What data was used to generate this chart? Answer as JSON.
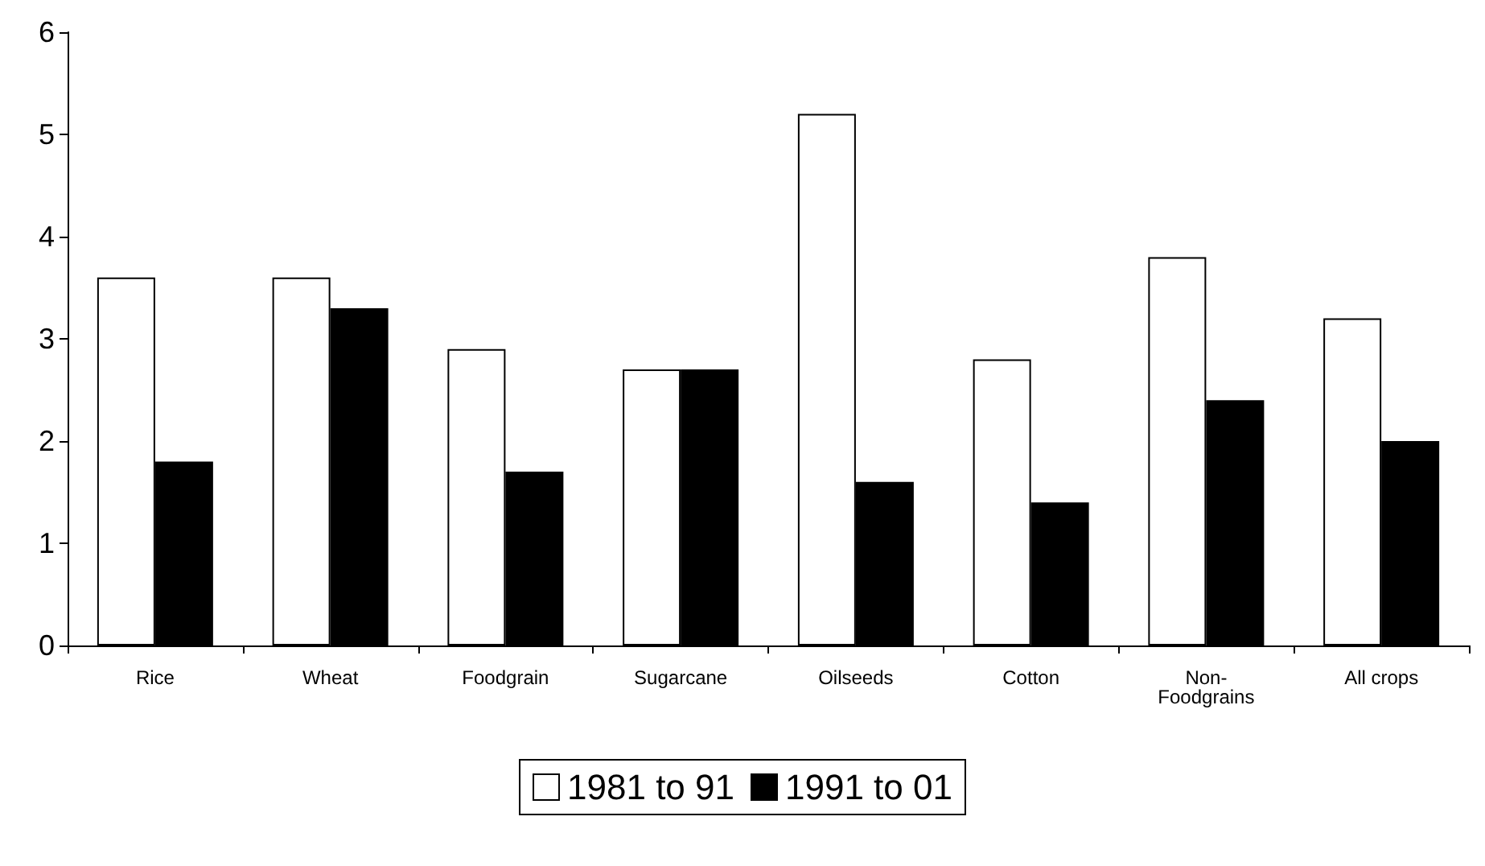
{
  "chart_data": {
    "type": "bar",
    "categories": [
      "Rice",
      "Wheat",
      "Foodgrain",
      "Sugarcane",
      "Oilseeds",
      "Cotton",
      "Non-Foodgrains",
      "All crops"
    ],
    "series": [
      {
        "name": "1981 to 91",
        "color": "#ffffff",
        "values": [
          3.6,
          3.6,
          2.9,
          2.7,
          5.2,
          2.8,
          3.8,
          3.2
        ]
      },
      {
        "name": "1991 to 01",
        "color": "#000000",
        "values": [
          1.8,
          3.3,
          1.7,
          2.7,
          1.6,
          1.4,
          2.4,
          2.0
        ]
      }
    ],
    "ylim": [
      0,
      6
    ],
    "yticks": [
      0,
      1,
      2,
      3,
      4,
      5,
      6
    ],
    "grid": false,
    "legend": "bottom"
  }
}
